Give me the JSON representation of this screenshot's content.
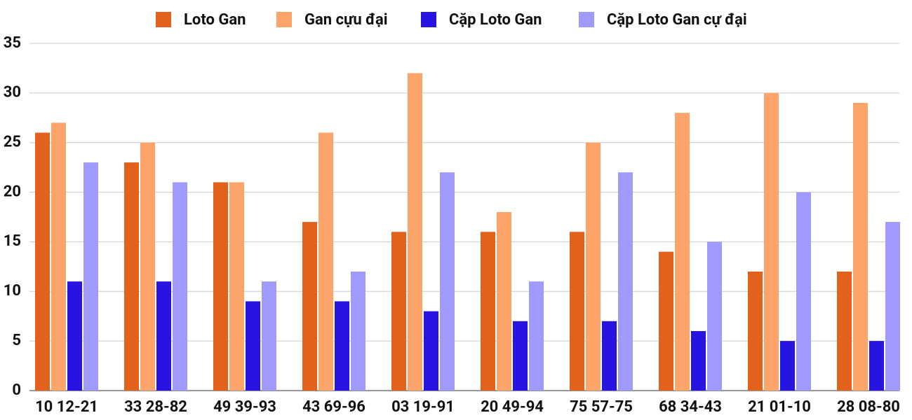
{
  "chart_data": {
    "type": "bar",
    "categories": [
      "10 12-21",
      "33 28-82",
      "49 39-93",
      "43 69-96",
      "03 19-91",
      "20 49-94",
      "75 57-75",
      "68 34-43",
      "21 01-10",
      "28 08-80"
    ],
    "series": [
      {
        "name": "Loto Gan",
        "color": "#e2621b",
        "values": [
          26,
          23,
          21,
          17,
          16,
          16,
          16,
          14,
          12,
          12
        ]
      },
      {
        "name": "Gan cựu đại",
        "color": "#fca46a",
        "values": [
          27,
          25,
          21,
          26,
          32,
          18,
          25,
          28,
          30,
          29
        ]
      },
      {
        "name": "Cặp Loto Gan",
        "color": "#2814e0",
        "values": [
          11,
          11,
          9,
          9,
          8,
          7,
          7,
          6,
          5,
          5
        ]
      },
      {
        "name": "Cặp Loto Gan cự đại",
        "color": "#a09afc",
        "values": [
          23,
          21,
          11,
          12,
          22,
          11,
          22,
          15,
          20,
          17
        ]
      }
    ],
    "ylim": [
      0,
      35
    ],
    "yticks": [
      0,
      5,
      10,
      15,
      20,
      25,
      30,
      35
    ],
    "grid": true,
    "legend": "top"
  }
}
